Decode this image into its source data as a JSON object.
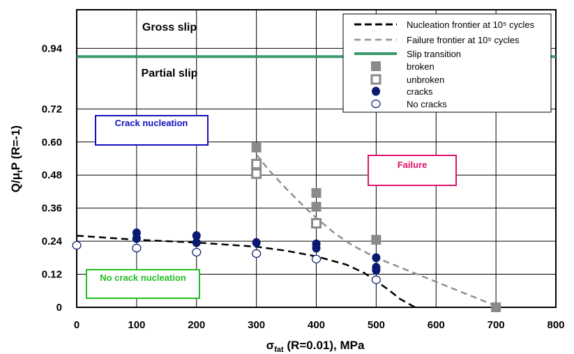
{
  "chart_data": {
    "type": "scatter",
    "xlabel_main": "σ",
    "xlabel_sub": "fat",
    "xlabel_rest": " (R=0.01), MPa",
    "ylabel_main": "Q/μ",
    "ylabel_sub": "t",
    "ylabel_rest": "P (R=-1)",
    "xlim": [
      0,
      800
    ],
    "ylim": [
      0,
      1.08
    ],
    "x_ticks": [
      0,
      100,
      200,
      300,
      400,
      500,
      600,
      700,
      800
    ],
    "x_tick_labels": [
      "0",
      "100",
      "200",
      "300",
      "400",
      "500",
      "600",
      "700",
      "800"
    ],
    "y_ticks": [
      0,
      0.12,
      0.24,
      0.36,
      0.48,
      0.6,
      0.72,
      0.94
    ],
    "y_tick_labels": [
      "0",
      "0.12",
      "0.24",
      "0.36",
      "0.48",
      "0.60",
      "0.72",
      "0.94"
    ],
    "grid": true,
    "colors": {
      "slip": "#3a9a6a",
      "nucleation": "#000000",
      "failure": "#8f8f8f",
      "broken": "#8a8a8a",
      "cracks": "#0a1a70",
      "crack_box": "#1010c0",
      "failure_box": "#e0106a",
      "nocrack_box": "#20c020"
    },
    "series": [
      {
        "name": "Nucleation frontier at 10⁵ cycles",
        "kind": "line",
        "dash": "long",
        "color": "#000000",
        "x": [
          0,
          100,
          200,
          300,
          350,
          400,
          450,
          480,
          500,
          520,
          540,
          565
        ],
        "y": [
          0.26,
          0.245,
          0.235,
          0.22,
          0.205,
          0.185,
          0.155,
          0.125,
          0.095,
          0.065,
          0.03,
          0
        ]
      },
      {
        "name": "Failure frontier at 10⁵ cycles",
        "kind": "line",
        "dash": "medium",
        "color": "#8f8f8f",
        "x": [
          300,
          320,
          350,
          380,
          400,
          430,
          460,
          500,
          540,
          580,
          620,
          660,
          700
        ],
        "y": [
          0.555,
          0.5,
          0.43,
          0.365,
          0.325,
          0.27,
          0.225,
          0.18,
          0.145,
          0.11,
          0.075,
          0.04,
          0.005
        ]
      },
      {
        "name": "Slip transition",
        "kind": "hline",
        "color": "#3a9a6a",
        "x": [
          0,
          800
        ],
        "y": [
          0.91,
          0.91
        ]
      },
      {
        "name": "broken",
        "kind": "filled-square",
        "color": "#8a8a8a",
        "x": [
          300,
          400,
          400,
          500,
          700
        ],
        "y": [
          0.58,
          0.415,
          0.365,
          0.245,
          0
        ]
      },
      {
        "name": "unbroken",
        "kind": "open-square",
        "color": "#8a8a8a",
        "x": [
          300,
          300,
          400
        ],
        "y": [
          0.52,
          0.485,
          0.305
        ]
      },
      {
        "name": "cracks",
        "kind": "filled-circle",
        "color": "#0a1a70",
        "x": [
          100,
          100,
          200,
          200,
          300,
          400,
          400,
          500,
          500,
          500
        ],
        "y": [
          0.27,
          0.25,
          0.26,
          0.235,
          0.235,
          0.23,
          0.215,
          0.18,
          0.145,
          0.135
        ]
      },
      {
        "name": "No cracks",
        "kind": "open-circle",
        "color": "#0a1a70",
        "x": [
          0,
          100,
          200,
          300,
          400,
          500
        ],
        "y": [
          0.225,
          0.215,
          0.2,
          0.195,
          0.175,
          0.1
        ]
      }
    ],
    "legend": {
      "placement": "top-right",
      "entries": [
        "Nucleation frontier at 10⁵ cycles",
        "Failure frontier at 10⁵ cycles",
        "Slip transition",
        "broken",
        "unbroken",
        "cracks",
        "No cracks"
      ]
    },
    "annotations": {
      "gross_slip": "Gross slip",
      "partial_slip": "Partial slip",
      "crack_nucleation": "Crack nucleation",
      "failure": "Failure",
      "no_crack_nucleation": "No crack nucleation"
    }
  }
}
